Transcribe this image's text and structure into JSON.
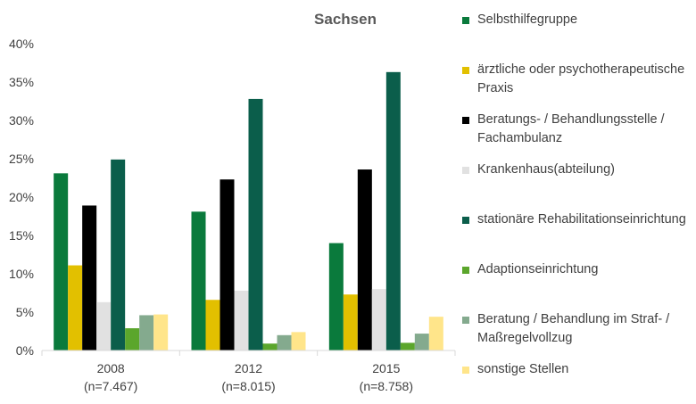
{
  "chart_data": {
    "type": "bar",
    "title": "Sachsen",
    "categories": [
      [
        "2008",
        "(n=7.467)"
      ],
      [
        "2012",
        "(n=8.015)"
      ],
      [
        "2015",
        "(n=8.758)"
      ]
    ],
    "ylim": [
      0,
      40
    ],
    "yticks": [
      "0%",
      "5%",
      "10%",
      "15%",
      "20%",
      "25%",
      "30%",
      "35%",
      "40%"
    ],
    "grid": false,
    "legend_position": "right",
    "series": [
      {
        "name": "Selbsthilfegruppe",
        "color": "#0a7a3c",
        "values": [
          23.1,
          18.1,
          14.0
        ]
      },
      {
        "name": "ärztliche oder psychotherapeutische Praxis",
        "color": "#e2c000",
        "values": [
          11.1,
          6.6,
          7.3
        ]
      },
      {
        "name": "Beratungs- / Behandlungsstelle / Fachambulanz",
        "color": "#000000",
        "values": [
          18.9,
          22.3,
          23.6
        ]
      },
      {
        "name": "Krankenhaus(abteilung)",
        "color": "#e1e1e1",
        "values": [
          6.3,
          7.8,
          8.0
        ]
      },
      {
        "name": "stationäre Rehabilitationseinrichtung",
        "color": "#0b5e4b",
        "values": [
          24.9,
          32.8,
          36.3
        ]
      },
      {
        "name": "Adaptionseinrichtung",
        "color": "#5ba62c",
        "values": [
          2.9,
          0.9,
          1.0
        ]
      },
      {
        "name": "Beratung / Behandlung im Straf- / Maßregelvollzug",
        "color": "#84aa8e",
        "values": [
          4.6,
          2.0,
          2.2
        ]
      },
      {
        "name": "sonstige Stellen",
        "color": "#ffe58a",
        "values": [
          4.7,
          2.4,
          4.4
        ]
      }
    ]
  }
}
